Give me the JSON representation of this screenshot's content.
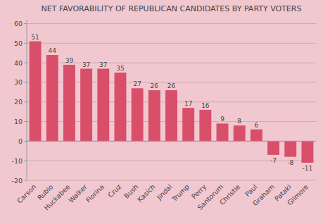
{
  "chart_data": {
    "type": "bar",
    "title": "NET FAVORABILITY OF REPUBLICAN CANDIDATES BY PARTY VOTERS",
    "categories": [
      "Carson",
      "Rubio",
      "Huckabee",
      "Walker",
      "Fiorina",
      "Cruz",
      "Bush",
      "Kasich",
      "Jindal",
      "Trump",
      "Perry",
      "Santorum",
      "Christie",
      "Paul",
      "Graham",
      "Pataki",
      "Gilmore"
    ],
    "values": [
      51,
      44,
      39,
      37,
      37,
      35,
      27,
      26,
      26,
      17,
      16,
      9,
      8,
      6,
      -7,
      -8,
      -11
    ],
    "color": "#d94f6a",
    "ylim": [
      -20,
      62
    ],
    "yticks": [
      -20,
      -10,
      0,
      10,
      20,
      30,
      40,
      50,
      60
    ],
    "grid": true,
    "data_labels": true
  }
}
